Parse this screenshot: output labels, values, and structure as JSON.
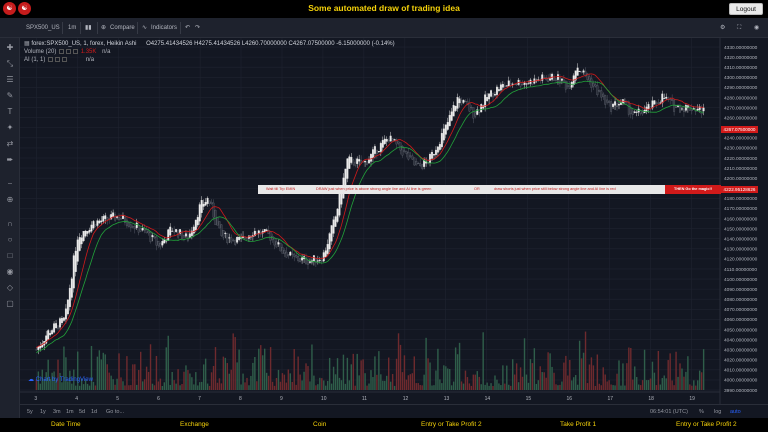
{
  "header": {
    "title": "Some automated draw of trading idea",
    "logout_label": "Logout"
  },
  "toolbar": {
    "symbol": "SPX500_US",
    "interval": "1m",
    "compare_label": "Compare",
    "indicators_label": "Indicators"
  },
  "legend": {
    "main": "forex:SPX500_US, 1, forex, Heikin Ashi",
    "ohlc": "O4275.41434526  H4275.41434526  L4260.70000000  C4267.07500000  -6.15000000 (-0.14%)",
    "volume_label": "Volume (20)",
    "volume_value": "1.35K",
    "volume_na": "n/a",
    "ai_label": "AI (1, 1)",
    "ai_value": "n/a"
  },
  "banner": {
    "text1": "Wait till Trp EMIN",
    "text2": "DRAW just when  price is above strong angle line and AI line is green",
    "or": "OR",
    "text3": "draw shorts just when price still below strong angle line and AI line is red",
    "button": "THEN Go the magic!!"
  },
  "price_labels": {
    "current": "4267.07500000",
    "banner_level": "4222.95128626"
  },
  "watermark": "Chart by TradingView",
  "timeframes": [
    "5y",
    "1y",
    "3m",
    "1m",
    "5d",
    "1d",
    "Go to..."
  ],
  "time_status": "06:54:01 (UTC)",
  "scale_buttons": [
    "%",
    "log",
    "auto"
  ],
  "bottom_menu": [
    "Date Time",
    "Exchange",
    "Coin",
    "Entry or Take Profit 2",
    "Take Profit 1",
    "Entry or Take Profit 2"
  ],
  "chart_data": {
    "type": "candlestick",
    "style": "Heikin Ashi",
    "y_ticks": [
      "4330.00000000",
      "4320.00000000",
      "4310.00000000",
      "4300.00000000",
      "4290.00000000",
      "4280.00000000",
      "4270.00000000",
      "4260.00000000",
      "4250.00000000",
      "4240.00000000",
      "4230.00000000",
      "4220.00000000",
      "4210.00000000",
      "4200.00000000",
      "4190.00000000",
      "4180.00000000",
      "4170.00000000",
      "4160.00000000",
      "4150.00000000",
      "4140.00000000",
      "4130.00000000",
      "4120.00000000",
      "4110.00000000",
      "4100.00000000",
      "4090.00000000",
      "4080.00000000",
      "4070.00000000",
      "4060.00000000",
      "4050.00000000",
      "4040.00000000",
      "4030.00000000",
      "4020.00000000",
      "4010.00000000",
      "4000.00000000",
      "3990.00000000"
    ],
    "x_ticks": [
      "3",
      "4",
      "5",
      "6",
      "7",
      "8",
      "9",
      "10",
      "11",
      "12",
      "13",
      "14",
      "15",
      "16",
      "17",
      "18",
      "19"
    ],
    "ylim": [
      3990,
      4335
    ],
    "price_path": [
      [
        3,
        4030
      ],
      [
        3.3,
        4048
      ],
      [
        3.7,
        4060
      ],
      [
        4,
        4142
      ],
      [
        4.4,
        4156
      ],
      [
        4.8,
        4160
      ],
      [
        5,
        4162
      ],
      [
        5.3,
        4155
      ],
      [
        5.7,
        4145
      ],
      [
        6,
        4132
      ],
      [
        6.3,
        4150
      ],
      [
        6.7,
        4140
      ],
      [
        7,
        4172
      ],
      [
        7.2,
        4180
      ],
      [
        7.5,
        4142
      ],
      [
        8,
        4138
      ],
      [
        8.3,
        4148
      ],
      [
        8.7,
        4143
      ],
      [
        9,
        4128
      ],
      [
        9.3,
        4120
      ],
      [
        9.7,
        4118
      ],
      [
        10,
        4122
      ],
      [
        10.3,
        4160
      ],
      [
        10.6,
        4218
      ],
      [
        11,
        4214
      ],
      [
        11.3,
        4228
      ],
      [
        11.6,
        4240
      ],
      [
        12,
        4224
      ],
      [
        12.3,
        4210
      ],
      [
        12.6,
        4218
      ],
      [
        13,
        4250
      ],
      [
        13.3,
        4280
      ],
      [
        13.7,
        4263
      ],
      [
        14,
        4280
      ],
      [
        14.3,
        4290
      ],
      [
        14.7,
        4295
      ],
      [
        15,
        4295
      ],
      [
        15.3,
        4298
      ],
      [
        15.7,
        4300
      ],
      [
        16,
        4290
      ],
      [
        16.2,
        4312
      ],
      [
        16.4,
        4302
      ],
      [
        16.7,
        4286
      ],
      [
        17,
        4270
      ],
      [
        17.3,
        4276
      ],
      [
        17.6,
        4262
      ],
      [
        18,
        4270
      ],
      [
        18.3,
        4281
      ],
      [
        18.6,
        4270
      ],
      [
        19,
        4270
      ],
      [
        19.3,
        4267
      ]
    ]
  },
  "colors": {
    "background": "#131722",
    "up": "#e8e8e8",
    "down": "#3a3f4a",
    "accent": "#f5d20a",
    "red": "#d11a1a",
    "green_line": "#22a33a"
  }
}
